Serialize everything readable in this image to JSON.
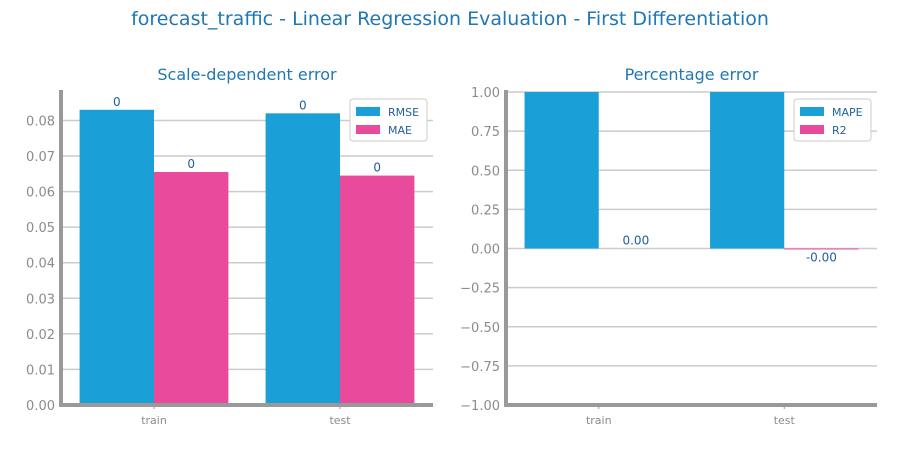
{
  "title": "forecast_traffic - Linear Regression Evaluation - First Differentiation",
  "colors": {
    "series_a": "#1a9fd6",
    "series_b": "#ea4a9c",
    "title": "#1f77b4",
    "axis": "#999999",
    "grid": "#cccccc"
  },
  "chart_data": [
    {
      "type": "bar",
      "title": "Scale-dependent error",
      "categories": [
        "train",
        "test"
      ],
      "series": [
        {
          "name": "RMSE",
          "values": [
            0.083,
            0.082
          ],
          "labels": [
            "0",
            "0"
          ]
        },
        {
          "name": "MAE",
          "values": [
            0.0655,
            0.0645
          ],
          "labels": [
            "0",
            "0"
          ]
        }
      ],
      "ylim": [
        0,
        0.088
      ],
      "yticks": [
        0,
        0.01,
        0.02,
        0.03,
        0.04,
        0.05,
        0.06,
        0.07,
        0.08
      ],
      "ytick_labels": [
        "0.00",
        "0.01",
        "0.02",
        "0.03",
        "0.04",
        "0.05",
        "0.06",
        "0.07",
        "0.08"
      ],
      "grid": "horizontal",
      "legend": "top-right"
    },
    {
      "type": "bar",
      "title": "Percentage error",
      "categories": [
        "train",
        "test"
      ],
      "series": [
        {
          "name": "MAPE",
          "values": [
            1.0,
            1.0
          ],
          "labels": [
            "",
            ""
          ]
        },
        {
          "name": "R2",
          "values": [
            0.0,
            -0.005
          ],
          "labels": [
            "0.00",
            "-0.00"
          ]
        }
      ],
      "ylim": [
        -1.0,
        1.0
      ],
      "yticks": [
        -1.0,
        -0.75,
        -0.5,
        -0.25,
        0.0,
        0.25,
        0.5,
        0.75,
        1.0
      ],
      "ytick_labels": [
        "−1.00",
        "−0.75",
        "−0.50",
        "−0.25",
        "0.00",
        "0.25",
        "0.50",
        "0.75",
        "1.00"
      ],
      "grid": "horizontal",
      "legend": "top-right"
    }
  ]
}
